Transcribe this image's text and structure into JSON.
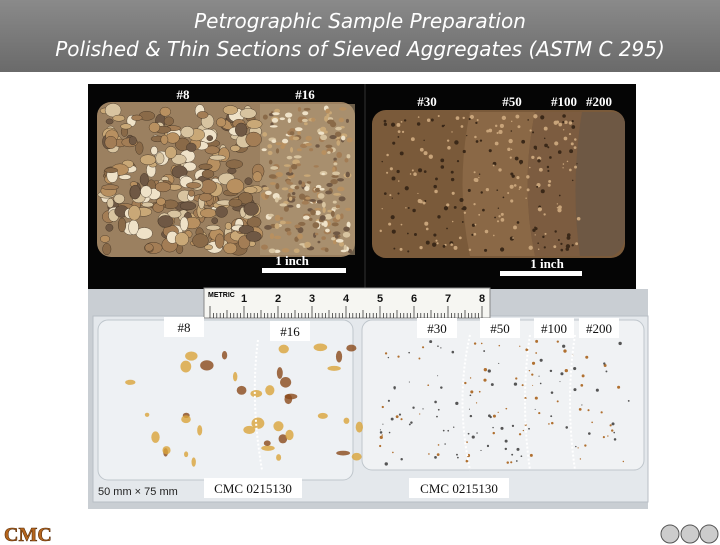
{
  "header": {
    "title_lines": [
      "Petrographic Sample Preparation",
      "Polished & Thin Sections of Sieved Aggregates (ASTM C 295)"
    ]
  },
  "polished_sections": {
    "left": {
      "labels": [
        "#8",
        "#16"
      ],
      "scale_bar": "1 inch"
    },
    "right": {
      "labels": [
        "#30",
        "#50",
        "#100",
        "#200"
      ],
      "scale_bar": "1 inch"
    }
  },
  "ruler": {
    "label": "METRIC",
    "numbers": [
      "1",
      "2",
      "3",
      "4",
      "5",
      "6",
      "7",
      "8"
    ]
  },
  "thin_sections": {
    "left": {
      "labels": [
        "#8",
        "#16"
      ],
      "id": "CMC 0215130",
      "dimensions": "50 mm × 75 mm"
    },
    "right": {
      "labels": [
        "#30",
        "#50",
        "#100",
        "#200"
      ],
      "id": "CMC 0215130"
    }
  },
  "footer": {
    "logo": "CMC"
  }
}
